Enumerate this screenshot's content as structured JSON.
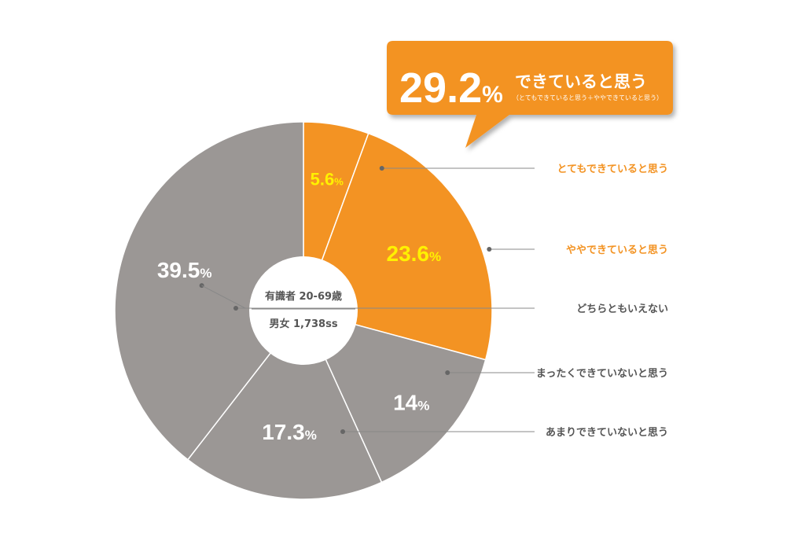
{
  "callout": {
    "value": "29.2",
    "unit": "%",
    "title": "できていると思う",
    "subtitle": "（とてもできていると思う＋ややできていると思う）"
  },
  "center": {
    "line1": "有識者 20-69歳",
    "line2": "男女 1,738ss"
  },
  "colors": {
    "orange": "#f39323",
    "gray": "#9b9795",
    "yellow": "#fff100",
    "white": "#ffffff",
    "label_gray": "#555555",
    "leader": "#888888"
  },
  "chart_data": {
    "type": "pie",
    "direction": "clockwise-from-top",
    "categories": [
      "とてもできていると思う",
      "ややできていると思う",
      "どちらともいえない",
      "まったくできていないと思う",
      "あまりできていないと思う",
      ""
    ],
    "values": [
      5.6,
      23.6,
      0,
      14,
      17.3,
      39.5
    ],
    "value_labels": [
      "5.6",
      "23.6",
      "",
      "14",
      "17.3",
      "39.5"
    ],
    "unit": "%",
    "slice_colors": [
      "orange",
      "orange",
      "gray",
      "gray",
      "gray",
      "gray"
    ],
    "value_label_colors": [
      "yellow",
      "yellow",
      "white",
      "white",
      "white",
      "white"
    ]
  }
}
